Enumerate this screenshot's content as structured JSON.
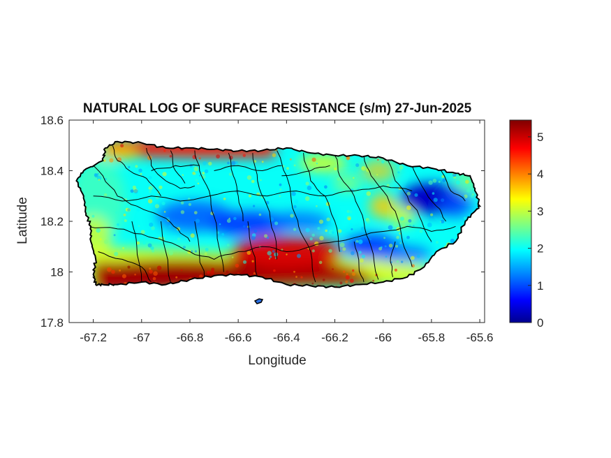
{
  "figure": {
    "title": "NATURAL LOG OF SURFACE RESISTANCE (s/m) 27-Jun-2025",
    "xlabel": "Longitude",
    "ylabel": "Latitude"
  },
  "map": {
    "xlim": [
      -67.3,
      -65.58
    ],
    "ylim": [
      17.8,
      18.6
    ],
    "xticks": [
      {
        "value": -67.2,
        "label": "-67.2"
      },
      {
        "value": -67.0,
        "label": "-67"
      },
      {
        "value": -66.8,
        "label": "-66.8"
      },
      {
        "value": -66.6,
        "label": "-66.6"
      },
      {
        "value": -66.4,
        "label": "-66.4"
      },
      {
        "value": -66.2,
        "label": "-66.2"
      },
      {
        "value": -66.0,
        "label": "-66"
      },
      {
        "value": -65.8,
        "label": "-65.8"
      },
      {
        "value": -65.6,
        "label": "-65.6"
      }
    ],
    "yticks": [
      {
        "value": 17.8,
        "label": "17.8"
      },
      {
        "value": 18.0,
        "label": "18"
      },
      {
        "value": 18.2,
        "label": "18.2"
      },
      {
        "value": 18.4,
        "label": "18.4"
      },
      {
        "value": 18.6,
        "label": "18.6"
      }
    ],
    "colormap": "jet",
    "colors": {
      "coast": "#000000",
      "municipal_borders": "#000000",
      "axes_box": "#000000"
    }
  },
  "colorbar": {
    "range": [
      0,
      5.45
    ],
    "ticks": [
      {
        "value": 0,
        "label": "0"
      },
      {
        "value": 1,
        "label": "1"
      },
      {
        "value": 2,
        "label": "2"
      },
      {
        "value": 3,
        "label": "3"
      },
      {
        "value": 4,
        "label": "4"
      },
      {
        "value": 5,
        "label": "5"
      }
    ]
  },
  "field": {
    "north_coast_band": {
      "value": 4.6
    },
    "south_coast_band": {
      "value": 5.2
    },
    "interior_typical": {
      "value": 2.0
    },
    "west_lobe": {
      "value": 2.3
    },
    "central_low_band": {
      "value": 0.9
    },
    "eastern_peak_low": {
      "value": 0.3
    },
    "southeast_low": {
      "value": 0.9
    },
    "east_interior_high": {
      "value": 3.6
    },
    "southwest_tip": {
      "value": 3.0
    }
  }
}
